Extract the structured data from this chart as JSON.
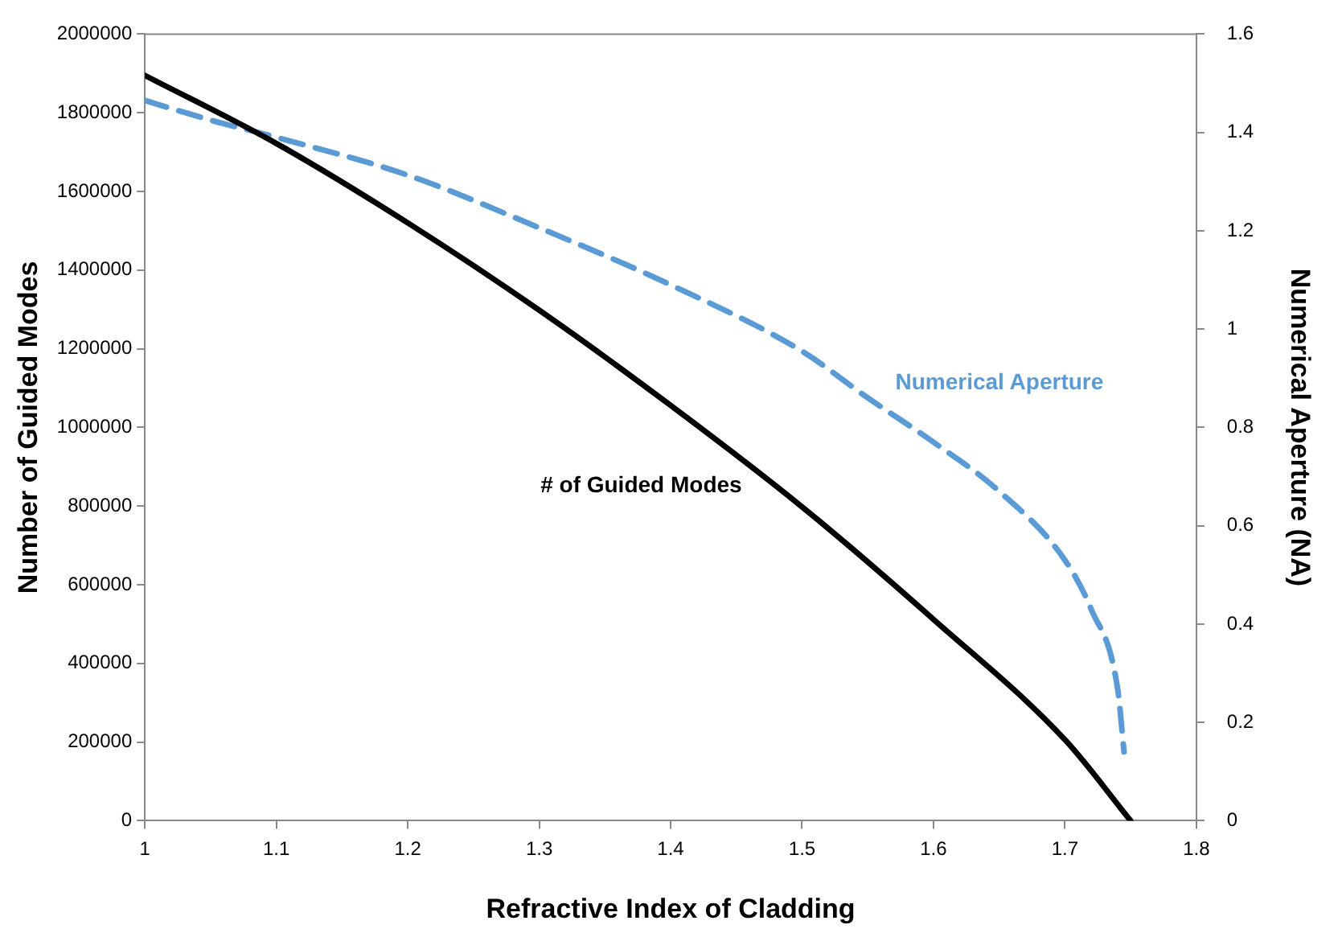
{
  "chart_data": {
    "type": "line",
    "xlabel": "Refractive Index of Cladding",
    "ylabel": "Number of Guided Modes",
    "y2label": "Numerical Aperture (NA)",
    "xlim": [
      1,
      1.8
    ],
    "xticks": [
      1,
      1.1,
      1.2,
      1.3,
      1.4,
      1.5,
      1.6,
      1.7,
      1.8
    ],
    "ylim": [
      0,
      2000000
    ],
    "yticks": [
      0,
      200000,
      400000,
      600000,
      800000,
      1000000,
      1200000,
      1400000,
      1600000,
      1800000,
      2000000
    ],
    "y2lim": [
      0,
      1.6
    ],
    "y2ticks": [
      0,
      0.2,
      0.4,
      0.6,
      0.8,
      1,
      1.2,
      1.4,
      1.6
    ],
    "grid": false,
    "legend": false,
    "marker": "none",
    "series": [
      {
        "name": "# of Guided Modes",
        "color": "#000000",
        "line_style": "solid",
        "x": [
          1,
          1.1,
          1.2,
          1.3,
          1.4,
          1.5,
          1.6,
          1.7,
          1.75
        ],
        "values": [
          1895000,
          1722000,
          1520000,
          1298000,
          1056000,
          798000,
          512000,
          206000,
          0
        ]
      },
      {
        "name": "Numerical Aperture",
        "color": "#5b9bd5",
        "line_style": "dashed",
        "axis": "y2",
        "x": [
          1,
          1.05,
          1.1,
          1.2,
          1.3,
          1.4,
          1.5,
          1.55,
          1.6,
          1.65,
          1.7,
          1.72,
          1.74,
          1.745
        ],
        "values": [
          1.465,
          1.425,
          1.39,
          1.313,
          1.206,
          1.09,
          0.955,
          0.86,
          0.77,
          0.67,
          0.53,
          0.43,
          0.27,
          0.14
        ]
      }
    ]
  }
}
